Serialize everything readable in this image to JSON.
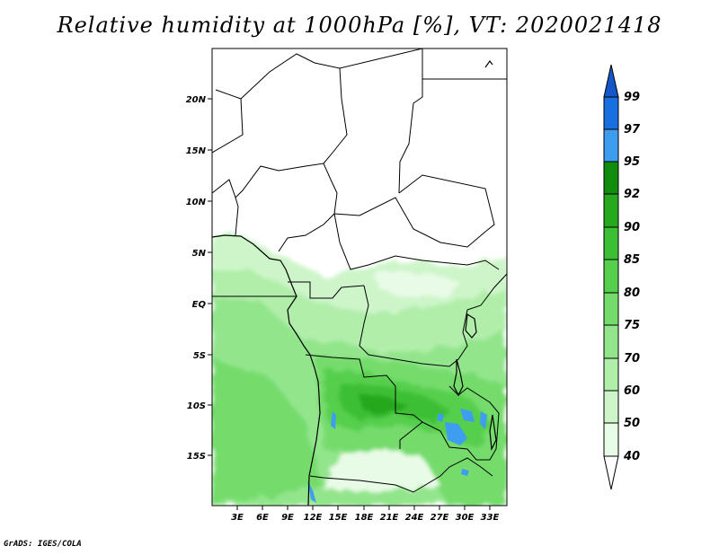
{
  "title": "Relative humidity at 1000hPa [%], VT: 2020021418",
  "footer": "GrADS: IGES/COLA",
  "map": {
    "lat_ticks": [
      "20N",
      "15N",
      "10N",
      "5N",
      "EQ",
      "5S",
      "10S",
      "15S"
    ],
    "lon_ticks": [
      "3E",
      "6E",
      "9E",
      "12E",
      "15E",
      "18E",
      "21E",
      "24E",
      "27E",
      "30E",
      "33E"
    ]
  },
  "colorbar": {
    "levels": [
      "40",
      "50",
      "60",
      "70",
      "75",
      "80",
      "85",
      "90",
      "92",
      "95",
      "97",
      "99"
    ],
    "colors": [
      "#ffffff",
      "#e8fbe6",
      "#cdf5c9",
      "#b0eeaa",
      "#93e58c",
      "#74dc6c",
      "#56cf4d",
      "#3cbf34",
      "#26a81f",
      "#118c0c",
      "#3f9df0",
      "#1a6fe0",
      "#1556c8"
    ]
  }
}
